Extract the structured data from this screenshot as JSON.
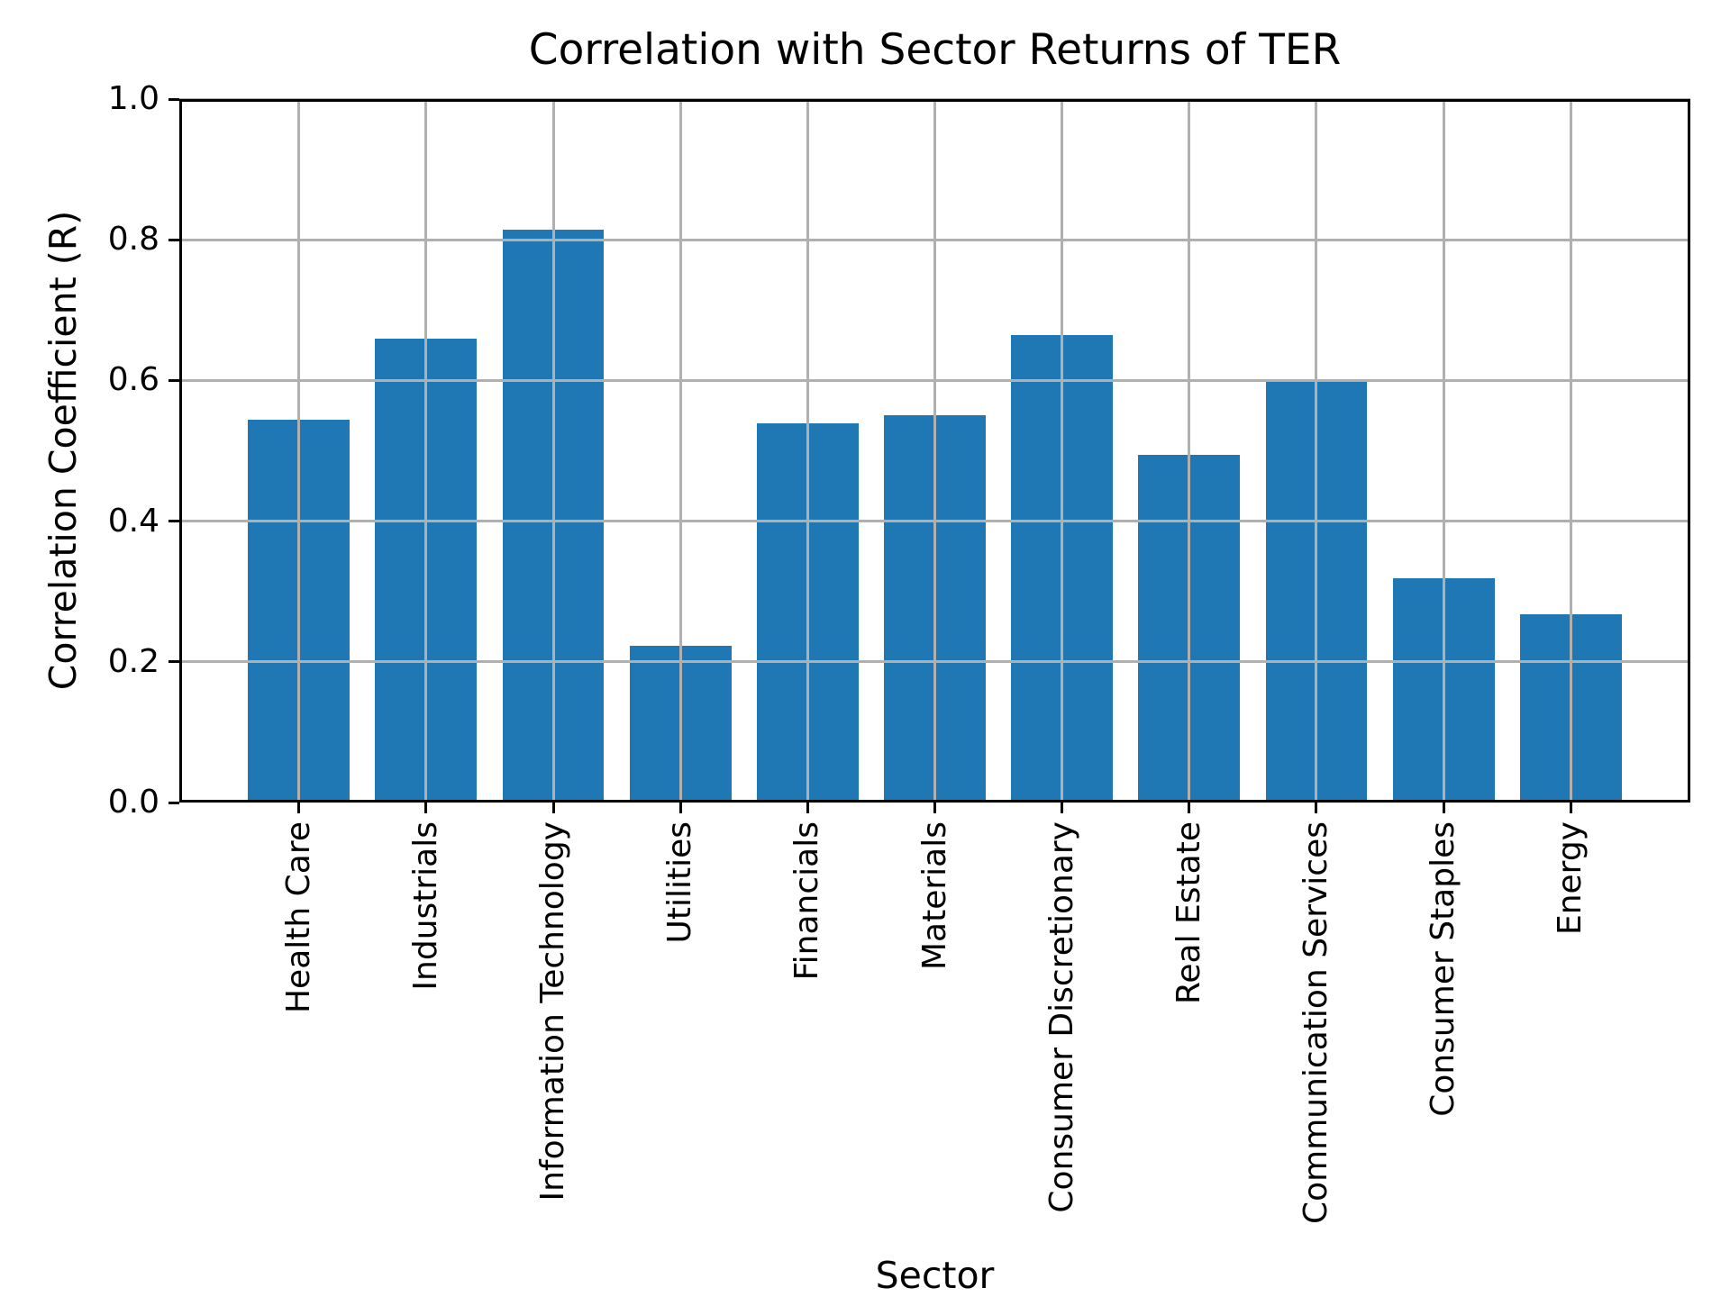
{
  "title": "Correlation with Sector Returns of TER",
  "axes": {
    "xlabel": "Sector",
    "ylabel": "Correlation Coefficient (R)",
    "ytick_labels": [
      "0.0",
      "0.2",
      "0.4",
      "0.6",
      "0.8",
      "1.0"
    ]
  },
  "chart_data": {
    "type": "bar",
    "title": "Correlation with Sector Returns of TER",
    "xlabel": "Sector",
    "ylabel": "Correlation Coefficient (R)",
    "categories": [
      "Health Care",
      "Industrials",
      "Information Technology",
      "Utilities",
      "Financials",
      "Materials",
      "Consumer Discretionary",
      "Real Estate",
      "Communication Services",
      "Consumer Staples",
      "Energy"
    ],
    "values": [
      0.544,
      0.659,
      0.814,
      0.223,
      0.539,
      0.551,
      0.664,
      0.494,
      0.602,
      0.319,
      0.268
    ],
    "ylim": [
      0.0,
      1.0
    ],
    "yticks": [
      0.0,
      0.2,
      0.4,
      0.6,
      0.8,
      1.0
    ],
    "grid": true,
    "legend_position": "none",
    "bar_width_fraction": 0.8
  },
  "style": {
    "bar_color": "#1f77b4",
    "grid_color": "#b0b0b0",
    "spine_color": "#000000",
    "text_color": "#000000",
    "background": "#ffffff"
  }
}
